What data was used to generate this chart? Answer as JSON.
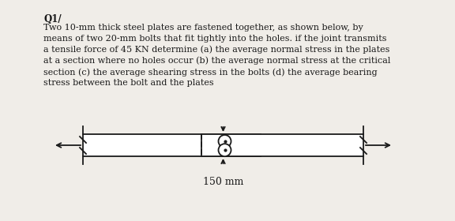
{
  "title": "Q1/",
  "body_text": "Two 10-mm thick steel plates are fastened together, as shown below, by\nmeans of two 20-mm bolts that fit tightly into the holes. if the joint transmits\na tensile force of 45 KN determine (a) the average normal stress in the plates\nat a section where no holes occur (b) the average normal stress at the critical\nsection (c) the average shearing stress in the bolts (d) the average bearing\nstress between the bolt and the plates",
  "dim_label": "150 mm",
  "bg_color": "#f0ede8",
  "text_color": "#1a1a1a",
  "diagram_color": "#1a1a1a",
  "title_fontsize": 8.5,
  "body_fontsize": 8.0,
  "dim_fontsize": 9.0,
  "plate_lw": 1.3
}
